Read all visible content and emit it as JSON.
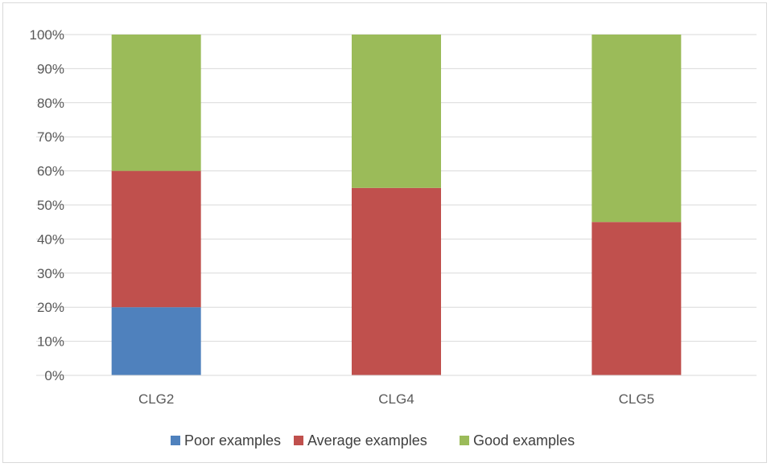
{
  "chart_data": {
    "type": "bar",
    "stacked": true,
    "percent": true,
    "categories": [
      "CLG2",
      "CLG4",
      "CLG5"
    ],
    "series": [
      {
        "name": "Poor examples",
        "values": [
          20,
          0,
          0
        ],
        "color": "#4f81bd"
      },
      {
        "name": "Average examples",
        "values": [
          40,
          55,
          45
        ],
        "color": "#c0504d"
      },
      {
        "name": "Good examples",
        "values": [
          40,
          45,
          55
        ],
        "color": "#9bbb59"
      }
    ],
    "ylim": [
      0,
      100
    ],
    "yticks": [
      "0%",
      "10%",
      "20%",
      "30%",
      "40%",
      "50%",
      "60%",
      "70%",
      "80%",
      "90%",
      "100%"
    ],
    "grid": true,
    "legend_position": "bottom"
  }
}
